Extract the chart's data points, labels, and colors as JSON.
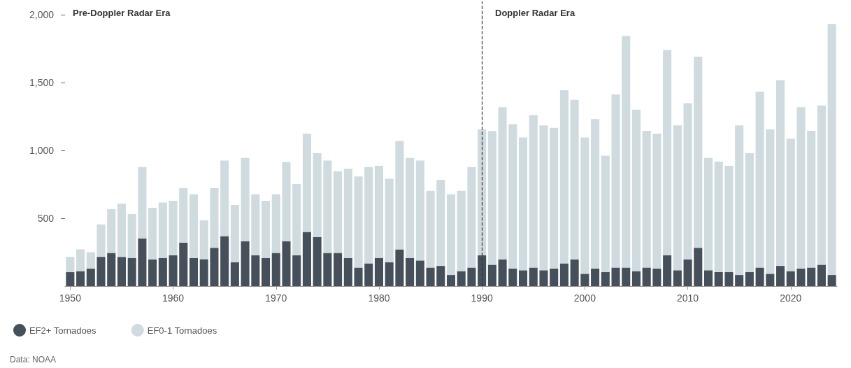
{
  "chart_data": {
    "type": "bar",
    "stacked": true,
    "categories": [
      "1950",
      null,
      null,
      null,
      null,
      null,
      null,
      null,
      null,
      null,
      "1960",
      null,
      null,
      null,
      null,
      null,
      null,
      null,
      null,
      null,
      "1970",
      null,
      null,
      null,
      null,
      null,
      null,
      null,
      null,
      null,
      "1980",
      null,
      null,
      null,
      null,
      null,
      null,
      null,
      null,
      null,
      "1990",
      null,
      null,
      null,
      null,
      null,
      null,
      null,
      null,
      null,
      "2000",
      null,
      null,
      null,
      null,
      null,
      null,
      null,
      null,
      null,
      "2010",
      null,
      null,
      null,
      null,
      null,
      null,
      null,
      null,
      null,
      "2020",
      null,
      null,
      null,
      null
    ],
    "series": [
      {
        "name": "EF2+ Tornadoes",
        "color": "#46505b",
        "values": [
          103,
          111,
          129,
          216,
          245,
          216,
          208,
          352,
          198,
          208,
          227,
          321,
          208,
          199,
          283,
          369,
          177,
          331,
          227,
          208,
          245,
          331,
          227,
          400,
          361,
          245,
          245,
          208,
          137,
          168,
          208,
          177,
          271,
          208,
          189,
          137,
          149,
          82,
          111,
          137,
          227,
          158,
          198,
          129,
          117,
          137,
          117,
          129,
          168,
          198,
          91,
          129,
          103,
          137,
          137,
          111,
          137,
          129,
          227,
          117,
          198,
          283,
          117,
          103,
          103,
          82,
          103,
          137,
          91,
          149,
          111,
          129,
          137,
          158,
          82
        ]
      },
      {
        "name": "EF0-1 Tornadoes",
        "color": "#cfdbdf",
        "values": [
          113,
          160,
          121,
          239,
          323,
          393,
          323,
          526,
          380,
          409,
          403,
          402,
          469,
          287,
          440,
          557,
          421,
          614,
          450,
          421,
          432,
          585,
          526,
          725,
          619,
          681,
          602,
          658,
          672,
          710,
          680,
          615,
          799,
          737,
          737,
          566,
          635,
          595,
          592,
          741,
          929,
          986,
          1122,
          1065,
          979,
          1124,
          1069,
          1038,
          1277,
          1176,
          1005,
          1103,
          859,
          1277,
          1708,
          1190,
          1009,
          996,
          1515,
          1069,
          1151,
          1409,
          828,
          815,
          785,
          1104,
          877,
          1298,
          1065,
          1370,
          977,
          1191,
          1009,
          1174,
          1851
        ]
      }
    ],
    "ylim": [
      0,
      2100
    ],
    "yticks": [
      {
        "value": 500,
        "label": "500"
      },
      {
        "value": 1000,
        "label": "1,000"
      },
      {
        "value": 1500,
        "label": "1,500"
      },
      {
        "value": 2000,
        "label": "2,000"
      }
    ],
    "grid": false,
    "legend": "bottom left",
    "ref_lines": [
      {
        "axis": "x",
        "value": "1990",
        "line_style": "dashed",
        "color": "#333333"
      }
    ],
    "annotations": [
      "Pre-Doppler Radar Era",
      "Doppler Radar Era",
      "Data: NOAA"
    ]
  }
}
